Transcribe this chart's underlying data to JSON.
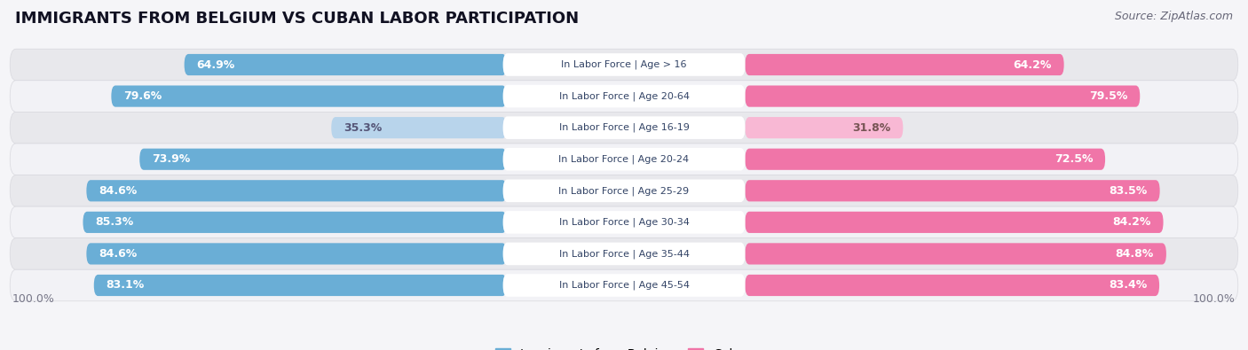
{
  "title": "IMMIGRANTS FROM BELGIUM VS CUBAN LABOR PARTICIPATION",
  "source": "Source: ZipAtlas.com",
  "categories": [
    "In Labor Force | Age > 16",
    "In Labor Force | Age 20-64",
    "In Labor Force | Age 16-19",
    "In Labor Force | Age 20-24",
    "In Labor Force | Age 25-29",
    "In Labor Force | Age 30-34",
    "In Labor Force | Age 35-44",
    "In Labor Force | Age 45-54"
  ],
  "belgium_values": [
    64.9,
    79.6,
    35.3,
    73.9,
    84.6,
    85.3,
    84.6,
    83.1
  ],
  "cuban_values": [
    64.2,
    79.5,
    31.8,
    72.5,
    83.5,
    84.2,
    84.8,
    83.4
  ],
  "belgium_color": "#6aaed6",
  "cuban_color": "#f075a8",
  "belgium_color_light": "#b8d4eb",
  "cuban_color_light": "#f8b8d4",
  "row_bg_color_dark": "#e8e8ec",
  "row_bg_color_light": "#f2f2f6",
  "row_bg_outline": "#d8d8de",
  "label_bg_color": "#ffffff",
  "title_fontsize": 13,
  "source_fontsize": 9,
  "bar_label_fontsize": 9,
  "legend_fontsize": 10,
  "axis_label_fontsize": 9,
  "max_value": 100.0,
  "legend_labels": [
    "Immigrants from Belgium",
    "Cuban"
  ],
  "background_color": "#f5f5f8"
}
